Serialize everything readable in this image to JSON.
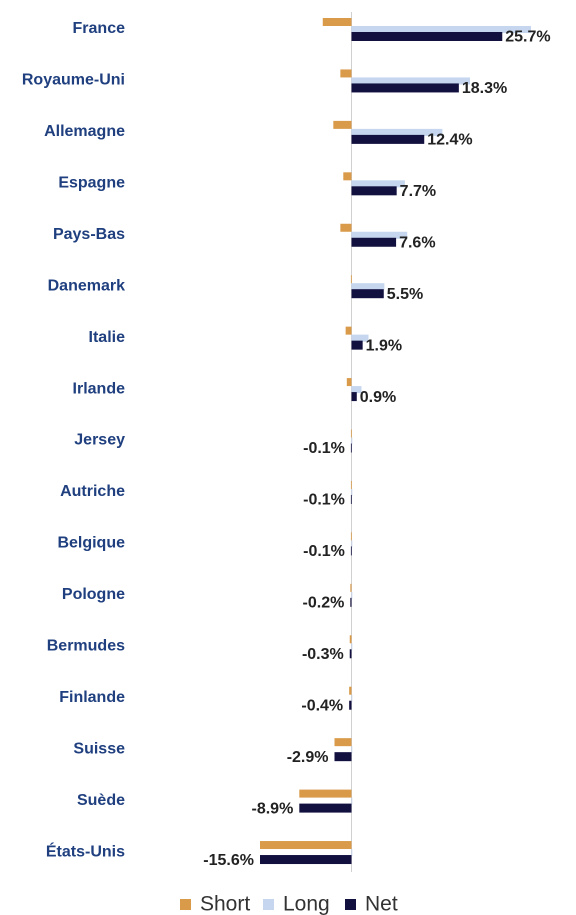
{
  "chart_data": {
    "type": "bar",
    "orientation": "horizontal",
    "categories": [
      "France",
      "Royaume-Uni",
      "Allemagne",
      "Espagne",
      "Pays-Bas",
      "Danemark",
      "Italie",
      "Irlande",
      "Jersey",
      "Autriche",
      "Belgique",
      "Pologne",
      "Bermudes",
      "Finlande",
      "Suisse",
      "Suède",
      "États-Unis"
    ],
    "series": [
      {
        "name": "Short",
        "color": "#d99a4a",
        "values": [
          -4.9,
          -1.9,
          -3.1,
          -1.4,
          -1.9,
          -0.1,
          -1.0,
          -0.8,
          -0.1,
          -0.1,
          -0.1,
          -0.2,
          -0.3,
          -0.4,
          -2.9,
          -8.9,
          -15.6
        ]
      },
      {
        "name": "Long",
        "color": "#c5d6ee",
        "values": [
          30.6,
          20.2,
          15.5,
          9.1,
          9.5,
          5.6,
          2.9,
          1.7,
          0,
          0,
          0,
          0,
          0,
          0,
          0,
          0,
          0
        ]
      },
      {
        "name": "Net",
        "color": "#12103f",
        "values": [
          25.7,
          18.3,
          12.4,
          7.7,
          7.6,
          5.5,
          1.9,
          0.9,
          -0.1,
          -0.1,
          -0.1,
          -0.2,
          -0.3,
          -0.4,
          -2.9,
          -8.9,
          -15.6
        ],
        "value_labels": [
          "25.7%",
          "18.3%",
          "12.4%",
          "7.7%",
          "7.6%",
          "5.5%",
          "1.9%",
          "0.9%",
          "-0.1%",
          "-0.1%",
          "-0.1%",
          "-0.2%",
          "-0.3%",
          "-0.4%",
          "-2.9%",
          "-8.9%",
          "-15.6%"
        ]
      }
    ],
    "legend": "bottom"
  }
}
